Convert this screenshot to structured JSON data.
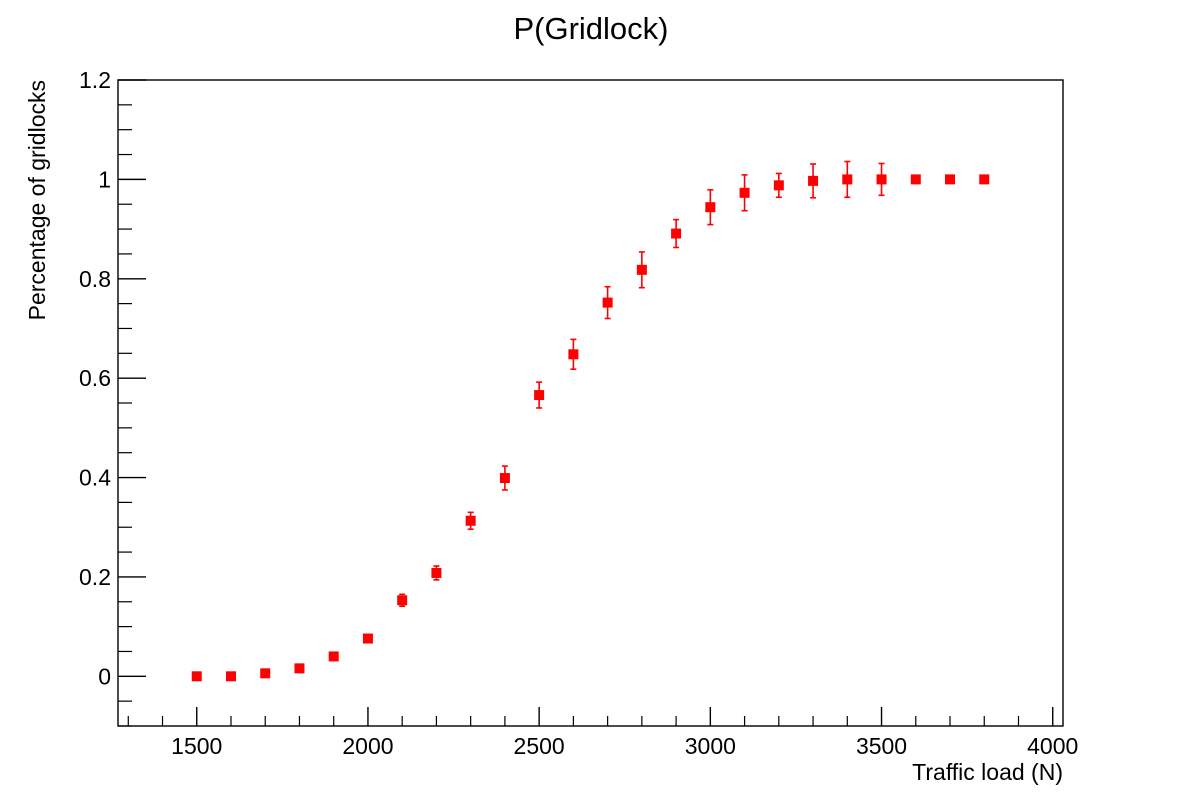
{
  "chart_data": {
    "type": "scatter",
    "title": "P(Gridlock)",
    "xlabel": "Traffic load (N)",
    "ylabel": "Percentage of gridlocks",
    "xlim": [
      1270,
      4030
    ],
    "ylim": [
      -0.1,
      1.2
    ],
    "xticks": [
      1500,
      2000,
      2500,
      3000,
      3500,
      4000
    ],
    "yticks": [
      0,
      0.2,
      0.4,
      0.6,
      0.8,
      1,
      1.2
    ],
    "ytick_labels": [
      "0",
      "0.2",
      "0.4",
      "0.6",
      "0.8",
      "1",
      "1.2"
    ],
    "grid": false,
    "marker_color": "#ff0000",
    "points": [
      {
        "x": 1500,
        "y": 0.0,
        "err": 0.0
      },
      {
        "x": 1600,
        "y": 0.0,
        "err": 0.0
      },
      {
        "x": 1700,
        "y": 0.006,
        "err": 0.0
      },
      {
        "x": 1800,
        "y": 0.016,
        "err": 0.0
      },
      {
        "x": 1900,
        "y": 0.04,
        "err": 0.0
      },
      {
        "x": 2000,
        "y": 0.076,
        "err": 0.0
      },
      {
        "x": 2100,
        "y": 0.153,
        "err": 0.012
      },
      {
        "x": 2200,
        "y": 0.208,
        "err": 0.014
      },
      {
        "x": 2300,
        "y": 0.313,
        "err": 0.017
      },
      {
        "x": 2400,
        "y": 0.399,
        "err": 0.024
      },
      {
        "x": 2500,
        "y": 0.566,
        "err": 0.026
      },
      {
        "x": 2600,
        "y": 0.648,
        "err": 0.03
      },
      {
        "x": 2700,
        "y": 0.752,
        "err": 0.032
      },
      {
        "x": 2800,
        "y": 0.818,
        "err": 0.036
      },
      {
        "x": 2900,
        "y": 0.891,
        "err": 0.028
      },
      {
        "x": 3000,
        "y": 0.944,
        "err": 0.035
      },
      {
        "x": 3100,
        "y": 0.973,
        "err": 0.036
      },
      {
        "x": 3200,
        "y": 0.988,
        "err": 0.024
      },
      {
        "x": 3300,
        "y": 0.997,
        "err": 0.034
      },
      {
        "x": 3400,
        "y": 1.0,
        "err": 0.036
      },
      {
        "x": 3500,
        "y": 1.0,
        "err": 0.032
      },
      {
        "x": 3600,
        "y": 1.0,
        "err": 0.0
      },
      {
        "x": 3700,
        "y": 1.0,
        "err": 0.0
      },
      {
        "x": 3800,
        "y": 1.0,
        "err": 0.0
      }
    ]
  }
}
